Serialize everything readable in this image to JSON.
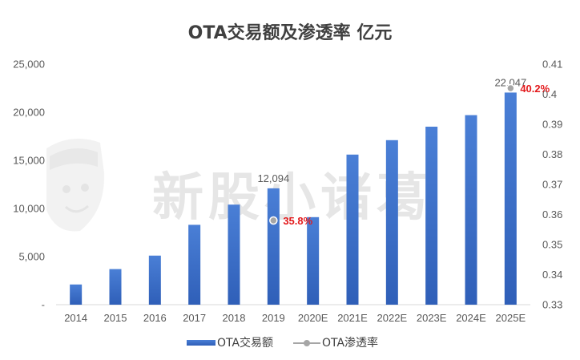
{
  "chart_data": {
    "type": "bar",
    "title": "OTA交易额及渗透率 亿元",
    "watermark": "新股小诸葛",
    "categories": [
      "2014",
      "2015",
      "2016",
      "2017",
      "2018",
      "2019",
      "2020E",
      "2021E",
      "2022E",
      "2023E",
      "2024E",
      "2025E"
    ],
    "series": [
      {
        "name": "OTA交易额",
        "type": "bar",
        "axis": "left",
        "values": [
          2100,
          3700,
          5100,
          8300,
          10400,
          12094,
          9100,
          15600,
          17100,
          18500,
          19700,
          22047
        ],
        "color": "#3a6cc9"
      },
      {
        "name": "OTA渗透率",
        "type": "line",
        "axis": "right",
        "points": [
          {
            "category": "2019",
            "value": 0.358
          },
          {
            "category": "2025E",
            "value": 0.402
          }
        ],
        "color": "#a6a6a6"
      }
    ],
    "left_axis": {
      "min": 0,
      "max": 25000,
      "step": 5000,
      "tick_labels": [
        "-",
        "5,000",
        "10,000",
        "15,000",
        "20,000",
        "25,000"
      ]
    },
    "right_axis": {
      "min": 0.33,
      "max": 0.41,
      "step": 0.01,
      "tick_labels": [
        "0.33",
        "0.34",
        "0.35",
        "0.36",
        "0.37",
        "0.38",
        "0.39",
        "0.4",
        "0.41"
      ]
    },
    "bar_data_labels": [
      {
        "category": "2019",
        "text": "12,094"
      },
      {
        "category": "2025E",
        "text": "22,047"
      }
    ],
    "rate_labels": [
      {
        "category": "2019",
        "text": "35.8%"
      },
      {
        "category": "2025E",
        "text": "40.2%"
      }
    ],
    "legend": [
      "OTA交易额",
      "OTA渗透率"
    ],
    "legend_position": "bottom"
  }
}
